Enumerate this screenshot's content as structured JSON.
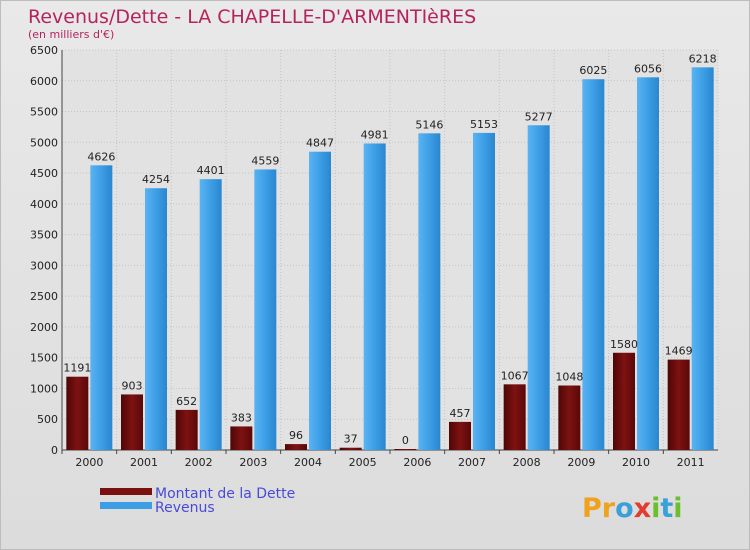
{
  "chart_data": {
    "type": "bar",
    "title": "Revenus/Dette - LA CHAPELLE-D'ARMENTIèRES",
    "subtitle": "(en milliers d'€)",
    "categories": [
      "2000",
      "2001",
      "2002",
      "2003",
      "2004",
      "2005",
      "2006",
      "2007",
      "2008",
      "2009",
      "2010",
      "2011"
    ],
    "series": [
      {
        "name": "Montant de la Dette",
        "color": "#7a1010",
        "values": [
          1191,
          903,
          652,
          383,
          96,
          37,
          0,
          457,
          1067,
          1048,
          1580,
          1469
        ],
        "labels": [
          "1191",
          "903",
          "652",
          "383",
          "96",
          "37",
          "0",
          "457",
          "1067",
          "1048",
          "1580",
          "1469"
        ]
      },
      {
        "name": "Revenus",
        "color": "#3d9ee6",
        "values": [
          4626,
          4254,
          4401,
          4559,
          4847,
          4981,
          5146,
          5153,
          5277,
          6025,
          6056,
          6218
        ],
        "labels": [
          "4626",
          "4254",
          "4401",
          "4559",
          "4847",
          "4981",
          "5146",
          "5153",
          "5277",
          "6025",
          "6056",
          "6218"
        ]
      }
    ],
    "yticks": [
      0,
      500,
      1000,
      1500,
      2000,
      2500,
      3000,
      3500,
      4000,
      4500,
      5000,
      5500,
      6000,
      6500
    ],
    "ylim": [
      0,
      6500
    ],
    "grid": true,
    "legend_position": "bottom-left"
  },
  "branding": {
    "logo_text": "Proxiti",
    "logo_letters": [
      {
        "ch": "P",
        "color": "#f0a11d"
      },
      {
        "ch": "r",
        "color": "#f0a11d"
      },
      {
        "ch": "o",
        "color": "#3aa0d8"
      },
      {
        "ch": "x",
        "color": "#e23b2f"
      },
      {
        "ch": "i",
        "color": "#6abf2b"
      },
      {
        "ch": "t",
        "color": "#3aa0d8"
      },
      {
        "ch": "i",
        "color": "#6abf2b"
      }
    ]
  }
}
